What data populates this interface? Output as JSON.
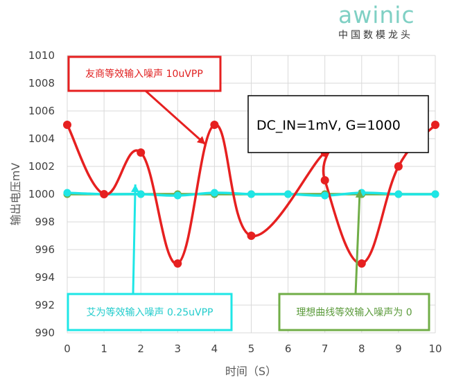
{
  "logo": {
    "word": "awinic",
    "sub": "中国数模龙头"
  },
  "colors": {
    "red": "#e62020",
    "cyan": "#1ee6e6",
    "green": "#70ad47",
    "grid": "#d9d9d9",
    "axis_text": "#404040"
  },
  "chart_data": {
    "type": "line",
    "title": "",
    "xlabel": "时间（S）",
    "ylabel": "输出电压mV",
    "xlim": [
      0,
      10
    ],
    "ylim": [
      990,
      1010
    ],
    "x_ticks": [
      "0",
      "1",
      "2",
      "3",
      "4",
      "5",
      "6",
      "7",
      "8",
      "9",
      "10"
    ],
    "y_ticks": [
      "990",
      "992",
      "994",
      "996",
      "998",
      "1000",
      "1002",
      "1004",
      "1006",
      "1008",
      "1010"
    ],
    "grid": true,
    "series": [
      {
        "name": "理想曲线等效输入噪声为 0",
        "color": "#70ad47",
        "points": [
          [
            0,
            1000
          ],
          [
            1,
            1000
          ],
          [
            2,
            1000
          ],
          [
            3,
            1000
          ],
          [
            4,
            1000
          ],
          [
            5,
            1000
          ],
          [
            6,
            1000
          ],
          [
            7,
            1000
          ],
          [
            8,
            1000
          ],
          [
            9,
            1000
          ],
          [
            10,
            1000
          ]
        ]
      },
      {
        "name": "艾为等效输入噪声 0.25uVPP",
        "color": "#1ee6e6",
        "points": [
          [
            0,
            1000.1
          ],
          [
            1,
            1000
          ],
          [
            2,
            1000
          ],
          [
            3,
            999.9
          ],
          [
            4,
            1000.1
          ],
          [
            5,
            1000
          ],
          [
            6,
            1000
          ],
          [
            7,
            999.9
          ],
          [
            8,
            1000.1
          ],
          [
            9,
            1000
          ],
          [
            10,
            1000
          ]
        ]
      },
      {
        "name": "友商等效输入噪声 10uVPP",
        "color": "#e62020",
        "points": [
          [
            0,
            1005
          ],
          [
            1,
            1000
          ],
          [
            2,
            1003
          ],
          [
            3,
            995
          ],
          [
            4,
            1005
          ],
          [
            5,
            997
          ],
          [
            7,
            1003
          ],
          [
            7,
            1001
          ],
          [
            8,
            995
          ],
          [
            9,
            1002
          ],
          [
            10,
            1005
          ]
        ]
      }
    ],
    "annotations": [
      {
        "id": "red",
        "text": "友商等效输入噪声 10uVPP",
        "color": "#e62020",
        "target": [
          3.75,
          1003.6
        ]
      },
      {
        "id": "black",
        "text": "DC_IN=1mV, G=1000",
        "color": "#000000"
      },
      {
        "id": "cyan",
        "text": "艾为等效输入噪声 0.25uVPP",
        "color": "#1ee6e6",
        "target": [
          1.85,
          1000.7
        ]
      },
      {
        "id": "green",
        "text": "理想曲线等效输入噪声为 0",
        "color": "#70ad47",
        "target": [
          7.95,
          1000.3
        ]
      }
    ]
  }
}
